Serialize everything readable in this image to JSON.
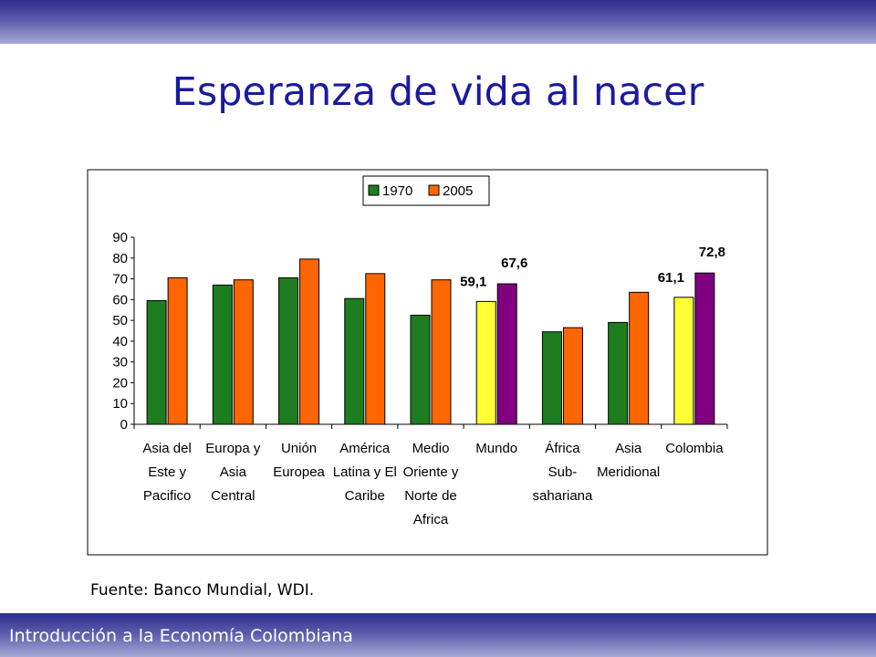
{
  "slide": {
    "title": "Esperanza de vida al nacer",
    "source": "Fuente: Banco Mundial, WDI.",
    "footer": "Introducción a la Economía Colombiana"
  },
  "colors": {
    "band": "#3a3a96",
    "title": "#1a1aa0",
    "green": "#1e7d1e",
    "orange": "#ff6600",
    "yellow": "#ffff33",
    "purple": "#800080"
  },
  "chart_data": {
    "type": "bar",
    "ylim": [
      0,
      90
    ],
    "yticks": [
      "0",
      "10",
      "20",
      "30",
      "40",
      "50",
      "60",
      "70",
      "80",
      "90"
    ],
    "legend_position": "top",
    "categories": [
      [
        "Asia del",
        "Este y",
        "Pacifico"
      ],
      [
        "Europa y",
        "Asia",
        "Central"
      ],
      [
        "Unión",
        "Europea"
      ],
      [
        "América",
        "Latina y El",
        "Caribe"
      ],
      [
        "Medio",
        "Oriente y",
        "Norte de",
        "Africa"
      ],
      [
        "Mundo"
      ],
      [
        "África",
        "Sub-",
        "sahariana"
      ],
      [
        "Asia",
        "Meridional"
      ],
      [
        "Colombia"
      ]
    ],
    "series": [
      {
        "name": "1970",
        "color": "#1e7d1e",
        "values": [
          59.5,
          67,
          70.5,
          60.5,
          52.5,
          59.1,
          44.5,
          49,
          61.1
        ]
      },
      {
        "name": "2005",
        "color": "#ff6600",
        "values": [
          70.5,
          69.5,
          79.5,
          72.5,
          69.5,
          67.6,
          46.5,
          63.5,
          72.8
        ]
      }
    ],
    "highlight": [
      {
        "category_index": 5,
        "colors": [
          "#ffff33",
          "#800080"
        ]
      },
      {
        "category_index": 8,
        "colors": [
          "#ffff33",
          "#800080"
        ]
      }
    ],
    "data_labels": [
      {
        "category_index": 5,
        "series_index": 0,
        "text": "59,1"
      },
      {
        "category_index": 5,
        "series_index": 1,
        "text": "67,6"
      },
      {
        "category_index": 8,
        "series_index": 0,
        "text": "61,1"
      },
      {
        "category_index": 8,
        "series_index": 1,
        "text": "72,8"
      }
    ]
  }
}
